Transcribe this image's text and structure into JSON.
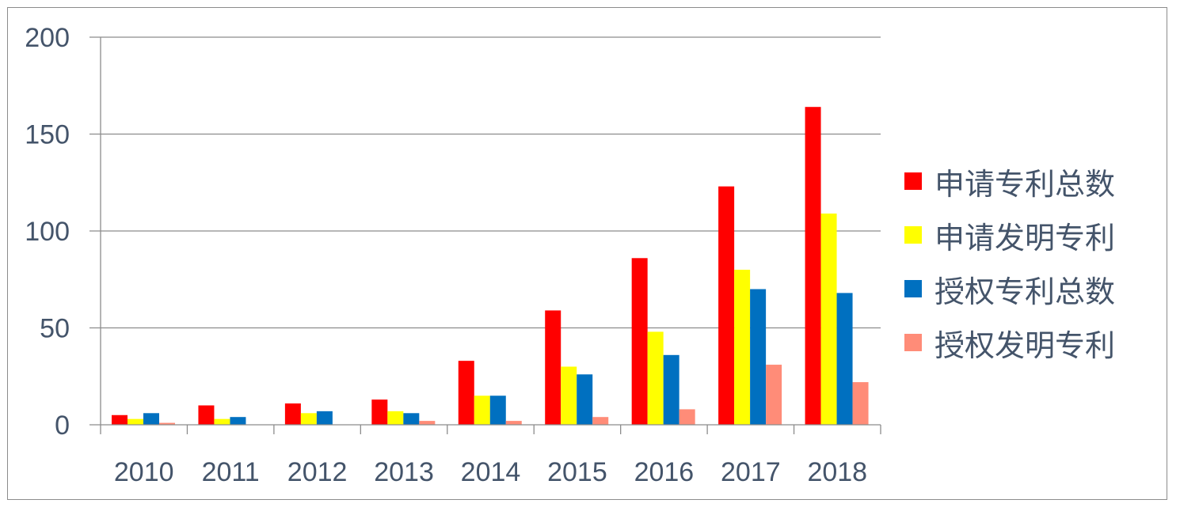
{
  "chart_data": {
    "type": "bar",
    "categories": [
      "2010",
      "2011",
      "2012",
      "2013",
      "2014",
      "2015",
      "2016",
      "2017",
      "2018"
    ],
    "series": [
      {
        "name": "申请专利总数",
        "color": "#ff0000",
        "values": [
          5,
          10,
          11,
          13,
          33,
          59,
          86,
          123,
          164
        ]
      },
      {
        "name": "申请发明专利",
        "color": "#ffff00",
        "values": [
          3,
          3,
          6,
          7,
          15,
          30,
          48,
          80,
          109
        ]
      },
      {
        "name": "授权专利总数",
        "color": "#0070c0",
        "values": [
          6,
          4,
          7,
          6,
          15,
          26,
          36,
          70,
          68
        ]
      },
      {
        "name": "授权发明专利",
        "color": "#ff8c78",
        "values": [
          1,
          0,
          0,
          2,
          2,
          4,
          8,
          31,
          22
        ]
      }
    ],
    "yticks": [
      "0",
      "50",
      "100",
      "150",
      "200"
    ],
    "ylim": [
      0,
      200
    ],
    "grid": true,
    "legend_position": "right"
  }
}
